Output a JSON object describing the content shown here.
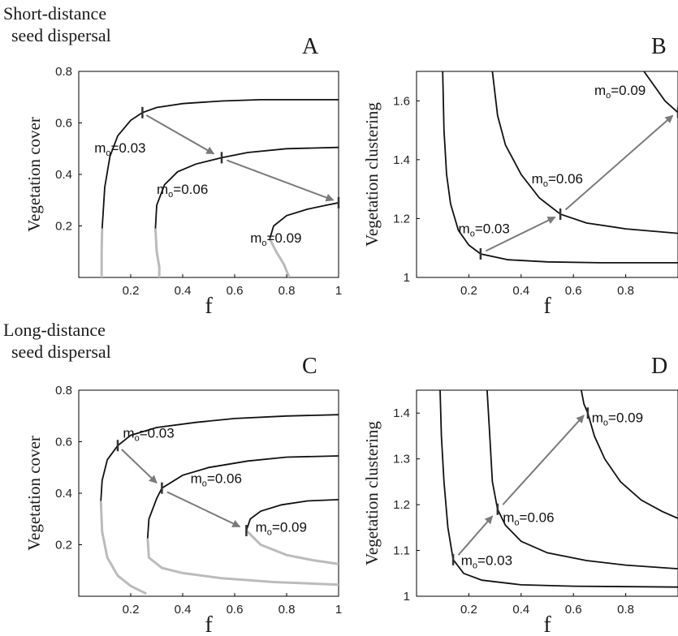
{
  "figure": {
    "row_titles": {
      "top": [
        "Short-distance",
        "seed dispersal"
      ],
      "bottom": [
        "Long-distance",
        "seed dispersal"
      ]
    },
    "colors": {
      "stable": "#111111",
      "unstable": "#bbbbbb",
      "arrow": "#7a7a7a",
      "tick_mark": "#333333"
    }
  },
  "chart_data": [
    {
      "panel": "A",
      "type": "line",
      "title": "",
      "xlabel": "f",
      "ylabel": "Vegetation cover",
      "xlim": [
        0,
        1
      ],
      "ylim": [
        0,
        0.8
      ],
      "xticks": [
        0.2,
        0.4,
        0.6,
        0.8,
        1
      ],
      "xtick_labels": [
        "0.2",
        "0.4",
        "0.6",
        "0.8",
        "1"
      ],
      "yticks": [
        0.2,
        0.4,
        0.6,
        0.8
      ],
      "ytick_labels": [
        "0.2",
        "0.4",
        "0.6",
        "0.8"
      ],
      "series": [
        {
          "name": "mo=0.03",
          "stable": [
            [
              0.09,
              0.19
            ],
            [
              0.1,
              0.35
            ],
            [
              0.12,
              0.47
            ],
            [
              0.15,
              0.55
            ],
            [
              0.2,
              0.61
            ],
            [
              0.245,
              0.64
            ],
            [
              0.3,
              0.66
            ],
            [
              0.4,
              0.675
            ],
            [
              0.55,
              0.685
            ],
            [
              0.7,
              0.69
            ],
            [
              0.85,
              0.69
            ],
            [
              1.0,
              0.69
            ]
          ],
          "unstable": [
            [
              0.09,
              0.19
            ],
            [
              0.088,
              0.1
            ],
            [
              0.088,
              0
            ]
          ]
        },
        {
          "name": "mo=0.06",
          "stable": [
            [
              0.295,
              0.19
            ],
            [
              0.3,
              0.28
            ],
            [
              0.33,
              0.36
            ],
            [
              0.38,
              0.41
            ],
            [
              0.45,
              0.44
            ],
            [
              0.55,
              0.465
            ],
            [
              0.65,
              0.485
            ],
            [
              0.8,
              0.5
            ],
            [
              1.0,
              0.505
            ]
          ],
          "unstable": [
            [
              0.295,
              0.19
            ],
            [
              0.3,
              0.1
            ],
            [
              0.31,
              0.04
            ],
            [
              0.31,
              0
            ]
          ]
        },
        {
          "name": "mo=0.09",
          "stable": [
            [
              0.735,
              0.15
            ],
            [
              0.75,
              0.2
            ],
            [
              0.8,
              0.24
            ],
            [
              0.88,
              0.265
            ],
            [
              0.95,
              0.28
            ],
            [
              1.0,
              0.29
            ]
          ],
          "unstable": [
            [
              0.735,
              0.15
            ],
            [
              0.76,
              0.1
            ],
            [
              0.79,
              0.05
            ],
            [
              0.81,
              0
            ]
          ]
        }
      ],
      "labels": [
        {
          "series": 0,
          "text": "m",
          "sub": "o",
          "value": "=0.03",
          "x": 0.06,
          "y": 0.485
        },
        {
          "series": 1,
          "text": "m",
          "sub": "o",
          "value": "=0.06",
          "x": 0.3,
          "y": 0.325
        },
        {
          "series": 2,
          "text": "m",
          "sub": "o",
          "value": "=0.09",
          "x": 0.66,
          "y": 0.135
        }
      ],
      "marks": [
        [
          0.245,
          0.64
        ],
        [
          0.55,
          0.465
        ],
        [
          1.0,
          0.29
        ]
      ],
      "arrows": [
        [
          [
            0.26,
            0.63
          ],
          [
            0.52,
            0.48
          ]
        ],
        [
          [
            0.57,
            0.455
          ],
          [
            0.98,
            0.3
          ]
        ]
      ]
    },
    {
      "panel": "B",
      "type": "line",
      "title": "",
      "xlabel": "f",
      "ylabel": "Vegetation clustering",
      "xlim": [
        0,
        1
      ],
      "ylim": [
        1,
        1.7
      ],
      "xticks": [
        0.2,
        0.4,
        0.6,
        0.8
      ],
      "xtick_labels": [
        "0.2",
        "0.4",
        "0.6",
        "0.8"
      ],
      "yticks": [
        1,
        1.2,
        1.4,
        1.6
      ],
      "ytick_labels": [
        "1",
        "1.2",
        "1.4",
        "1.6"
      ],
      "series": [
        {
          "name": "mo=0.03",
          "stable": [
            [
              0.1,
              1.7
            ],
            [
              0.105,
              1.5
            ],
            [
              0.115,
              1.35
            ],
            [
              0.13,
              1.25
            ],
            [
              0.16,
              1.16
            ],
            [
              0.2,
              1.11
            ],
            [
              0.245,
              1.08
            ],
            [
              0.35,
              1.06
            ],
            [
              0.5,
              1.053
            ],
            [
              0.7,
              1.05
            ],
            [
              1.0,
              1.05
            ]
          ]
        },
        {
          "name": "mo=0.06",
          "stable": [
            [
              0.29,
              1.7
            ],
            [
              0.31,
              1.55
            ],
            [
              0.34,
              1.45
            ],
            [
              0.4,
              1.35
            ],
            [
              0.47,
              1.27
            ],
            [
              0.55,
              1.215
            ],
            [
              0.65,
              1.185
            ],
            [
              0.8,
              1.165
            ],
            [
              1.0,
              1.15
            ]
          ]
        },
        {
          "name": "mo=0.09",
          "stable": [
            [
              0.87,
              1.7
            ],
            [
              0.91,
              1.65
            ],
            [
              0.95,
              1.6
            ],
            [
              1.0,
              1.56
            ]
          ]
        }
      ],
      "labels": [
        {
          "series": 0,
          "text": "m",
          "sub": "o",
          "value": "=0.03",
          "x": 0.16,
          "y": 1.15
        },
        {
          "series": 1,
          "text": "m",
          "sub": "o",
          "value": "=0.06",
          "x": 0.44,
          "y": 1.32
        },
        {
          "series": 2,
          "text": "m",
          "sub": "o",
          "value": "=0.09",
          "x": 0.68,
          "y": 1.62
        }
      ],
      "marks": [
        [
          0.245,
          1.08
        ],
        [
          0.55,
          1.215
        ],
        [
          1.0,
          1.56
        ]
      ],
      "arrows": [
        [
          [
            0.265,
            1.09
          ],
          [
            0.53,
            1.205
          ]
        ],
        [
          [
            0.57,
            1.23
          ],
          [
            0.98,
            1.55
          ]
        ]
      ]
    },
    {
      "panel": "C",
      "type": "line",
      "title": "",
      "xlabel": "f",
      "ylabel": "Vegetation cover",
      "xlim": [
        0,
        1
      ],
      "ylim": [
        0,
        0.8
      ],
      "xticks": [
        0.2,
        0.4,
        0.6,
        0.8,
        1
      ],
      "xtick_labels": [
        "0.2",
        "0.4",
        "0.6",
        "0.8",
        "1"
      ],
      "yticks": [
        0.2,
        0.4,
        0.6,
        0.8
      ],
      "ytick_labels": [
        "0.2",
        "0.4",
        "0.6",
        "0.8"
      ],
      "series": [
        {
          "name": "mo=0.03",
          "stable": [
            [
              0.085,
              0.37
            ],
            [
              0.09,
              0.45
            ],
            [
              0.11,
              0.53
            ],
            [
              0.15,
              0.585
            ],
            [
              0.2,
              0.625
            ],
            [
              0.3,
              0.655
            ],
            [
              0.45,
              0.675
            ],
            [
              0.6,
              0.69
            ],
            [
              0.8,
              0.7
            ],
            [
              1.0,
              0.705
            ]
          ],
          "unstable": [
            [
              0.085,
              0.37
            ],
            [
              0.09,
              0.25
            ],
            [
              0.11,
              0.15
            ],
            [
              0.15,
              0.08
            ],
            [
              0.2,
              0.04
            ],
            [
              0.26,
              0.01
            ]
          ]
        },
        {
          "name": "mo=0.06",
          "stable": [
            [
              0.265,
              0.225
            ],
            [
              0.27,
              0.3
            ],
            [
              0.3,
              0.38
            ],
            [
              0.32,
              0.42
            ],
            [
              0.4,
              0.47
            ],
            [
              0.5,
              0.5
            ],
            [
              0.65,
              0.525
            ],
            [
              0.8,
              0.54
            ],
            [
              1.0,
              0.545
            ]
          ],
          "unstable": [
            [
              0.265,
              0.225
            ],
            [
              0.27,
              0.15
            ],
            [
              0.32,
              0.11
            ],
            [
              0.4,
              0.09
            ],
            [
              0.55,
              0.07
            ],
            [
              0.75,
              0.055
            ],
            [
              1.0,
              0.045
            ]
          ]
        },
        {
          "name": "mo=0.09",
          "stable": [
            [
              0.645,
              0.255
            ],
            [
              0.66,
              0.3
            ],
            [
              0.7,
              0.33
            ],
            [
              0.78,
              0.355
            ],
            [
              0.88,
              0.37
            ],
            [
              1.0,
              0.375
            ]
          ],
          "unstable": [
            [
              0.645,
              0.255
            ],
            [
              0.7,
              0.2
            ],
            [
              0.8,
              0.16
            ],
            [
              0.9,
              0.14
            ],
            [
              1.0,
              0.125
            ]
          ]
        }
      ],
      "labels": [
        {
          "series": 0,
          "text": "m",
          "sub": "o",
          "value": "=0.03",
          "x": 0.17,
          "y": 0.615
        },
        {
          "series": 1,
          "text": "m",
          "sub": "o",
          "value": "=0.06",
          "x": 0.43,
          "y": 0.44
        },
        {
          "series": 2,
          "text": "m",
          "sub": "o",
          "value": "=0.09",
          "x": 0.68,
          "y": 0.25
        }
      ],
      "marks": [
        [
          0.15,
          0.585
        ],
        [
          0.32,
          0.42
        ],
        [
          0.645,
          0.255
        ]
      ],
      "arrows": [
        [
          [
            0.165,
            0.57
          ],
          [
            0.3,
            0.44
          ]
        ],
        [
          [
            0.34,
            0.405
          ],
          [
            0.62,
            0.27
          ]
        ]
      ]
    },
    {
      "panel": "D",
      "type": "line",
      "title": "",
      "xlabel": "f",
      "ylabel": "Vegetation clustering",
      "xlim": [
        0,
        1
      ],
      "ylim": [
        1,
        1.45
      ],
      "xticks": [
        0.2,
        0.4,
        0.6,
        0.8
      ],
      "xtick_labels": [
        "0.2",
        "0.4",
        "0.6",
        "0.8"
      ],
      "yticks": [
        1,
        1.1,
        1.2,
        1.3,
        1.4
      ],
      "ytick_labels": [
        "1",
        "1.1",
        "1.2",
        "1.3",
        "1.4"
      ],
      "series": [
        {
          "name": "mo=0.03",
          "stable": [
            [
              0.09,
              1.45
            ],
            [
              0.095,
              1.35
            ],
            [
              0.105,
              1.25
            ],
            [
              0.12,
              1.15
            ],
            [
              0.14,
              1.08
            ],
            [
              0.18,
              1.05
            ],
            [
              0.25,
              1.035
            ],
            [
              0.4,
              1.025
            ],
            [
              0.6,
              1.022
            ],
            [
              1.0,
              1.02
            ]
          ]
        },
        {
          "name": "mo=0.06",
          "stable": [
            [
              0.27,
              1.45
            ],
            [
              0.28,
              1.35
            ],
            [
              0.29,
              1.25
            ],
            [
              0.31,
              1.19
            ],
            [
              0.34,
              1.155
            ],
            [
              0.4,
              1.12
            ],
            [
              0.5,
              1.095
            ],
            [
              0.65,
              1.078
            ],
            [
              0.8,
              1.068
            ],
            [
              1.0,
              1.06
            ]
          ]
        },
        {
          "name": "mo=0.09",
          "stable": [
            [
              0.63,
              1.45
            ],
            [
              0.64,
              1.42
            ],
            [
              0.655,
              1.4
            ],
            [
              0.68,
              1.35
            ],
            [
              0.72,
              1.3
            ],
            [
              0.78,
              1.25
            ],
            [
              0.86,
              1.21
            ],
            [
              0.94,
              1.185
            ],
            [
              1.0,
              1.17
            ]
          ]
        }
      ],
      "labels": [
        {
          "series": 0,
          "text": "m",
          "sub": "o",
          "value": "=0.03",
          "x": 0.17,
          "y": 1.068
        },
        {
          "series": 1,
          "text": "m",
          "sub": "o",
          "value": "=0.06",
          "x": 0.33,
          "y": 1.162
        },
        {
          "series": 2,
          "text": "m",
          "sub": "o",
          "value": "=0.09",
          "x": 0.67,
          "y": 1.38
        }
      ],
      "marks": [
        [
          0.14,
          1.08
        ],
        [
          0.31,
          1.19
        ],
        [
          0.655,
          1.4
        ]
      ],
      "arrows": [
        [
          [
            0.16,
            1.09
          ],
          [
            0.29,
            1.175
          ]
        ],
        [
          [
            0.33,
            1.2
          ],
          [
            0.64,
            1.395
          ]
        ]
      ]
    }
  ]
}
